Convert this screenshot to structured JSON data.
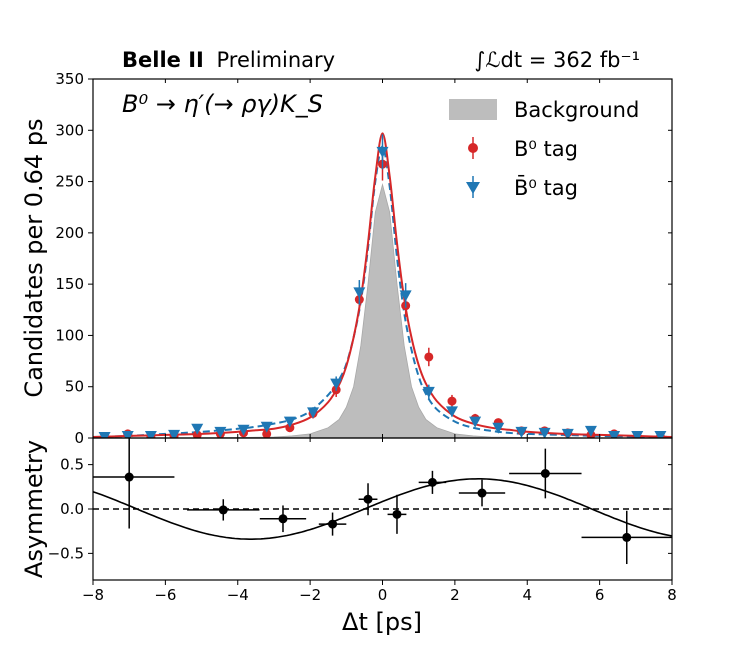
{
  "header": {
    "experiment_bold": "Belle II",
    "experiment_rest": "Preliminary",
    "luminosity": "∫ℒdt = 362 fb⁻¹"
  },
  "chart_data": [
    {
      "type": "scatter",
      "panel": "top",
      "process_label": "B⁰ → η′(→ ργ)K_S",
      "xlabel": "",
      "ylabel": "Candidates per 0.64 ps",
      "xlim": [
        -8,
        8
      ],
      "ylim": [
        0,
        350
      ],
      "xticks": [
        -8,
        -6,
        -4,
        -2,
        0,
        2,
        4,
        6,
        8
      ],
      "yticks": [
        0,
        50,
        100,
        150,
        200,
        250,
        300,
        350
      ],
      "legend": {
        "placement": "top-right",
        "entries": [
          {
            "key": "background",
            "label": "Background"
          },
          {
            "key": "b0",
            "label": "B⁰ tag"
          },
          {
            "key": "b0bar",
            "label": "B̄⁰ tag"
          }
        ]
      },
      "colors": {
        "b0": "#d62728",
        "b0bar": "#1f77b4",
        "background": "#bdbdbd"
      },
      "series": [
        {
          "key": "b0",
          "marker": "circle",
          "points": [
            {
              "x": -7.68,
              "y": 1,
              "err": 1
            },
            {
              "x": -7.04,
              "y": 4,
              "err": 2
            },
            {
              "x": -6.4,
              "y": 1,
              "err": 1
            },
            {
              "x": -5.76,
              "y": 2,
              "err": 1.5
            },
            {
              "x": -5.12,
              "y": 3,
              "err": 2
            },
            {
              "x": -4.48,
              "y": 4,
              "err": 2
            },
            {
              "x": -3.84,
              "y": 5,
              "err": 2.5
            },
            {
              "x": -3.2,
              "y": 4,
              "err": 2.5
            },
            {
              "x": -2.56,
              "y": 10,
              "err": 3.5
            },
            {
              "x": -1.92,
              "y": 24,
              "err": 5
            },
            {
              "x": -1.28,
              "y": 47,
              "err": 7
            },
            {
              "x": -0.64,
              "y": 135,
              "err": 11
            },
            {
              "x": 0.0,
              "y": 267,
              "err": 16
            },
            {
              "x": 0.64,
              "y": 129,
              "err": 11
            },
            {
              "x": 1.28,
              "y": 79,
              "err": 9
            },
            {
              "x": 1.92,
              "y": 36,
              "err": 6
            },
            {
              "x": 2.56,
              "y": 19,
              "err": 4.5
            },
            {
              "x": 3.2,
              "y": 15,
              "err": 4
            },
            {
              "x": 3.84,
              "y": 7,
              "err": 2.5
            },
            {
              "x": 4.48,
              "y": 7,
              "err": 2.5
            },
            {
              "x": 5.12,
              "y": 5,
              "err": 2
            },
            {
              "x": 5.76,
              "y": 3,
              "err": 2
            },
            {
              "x": 6.4,
              "y": 4,
              "err": 2
            },
            {
              "x": 7.04,
              "y": 1,
              "err": 1
            },
            {
              "x": 7.68,
              "y": 1,
              "err": 1
            }
          ]
        },
        {
          "key": "b0bar",
          "marker": "triangle-down",
          "points": [
            {
              "x": -7.68,
              "y": 1,
              "err": 1
            },
            {
              "x": -7.04,
              "y": 2,
              "err": 1.5
            },
            {
              "x": -6.4,
              "y": 2,
              "err": 1.5
            },
            {
              "x": -5.76,
              "y": 3,
              "err": 2
            },
            {
              "x": -5.12,
              "y": 9,
              "err": 3
            },
            {
              "x": -4.48,
              "y": 6,
              "err": 2.5
            },
            {
              "x": -3.84,
              "y": 8,
              "err": 3
            },
            {
              "x": -3.2,
              "y": 11,
              "err": 3.5
            },
            {
              "x": -2.56,
              "y": 16,
              "err": 4
            },
            {
              "x": -1.92,
              "y": 25,
              "err": 5
            },
            {
              "x": -1.28,
              "y": 53,
              "err": 7
            },
            {
              "x": -0.64,
              "y": 142,
              "err": 12
            },
            {
              "x": 0.0,
              "y": 279,
              "err": 17
            },
            {
              "x": 0.64,
              "y": 139,
              "err": 12
            },
            {
              "x": 1.28,
              "y": 45,
              "err": 7
            },
            {
              "x": 1.92,
              "y": 26,
              "err": 5
            },
            {
              "x": 2.56,
              "y": 16,
              "err": 4
            },
            {
              "x": 3.2,
              "y": 10,
              "err": 3
            },
            {
              "x": 3.84,
              "y": 6,
              "err": 2.5
            },
            {
              "x": 4.48,
              "y": 5,
              "err": 2
            },
            {
              "x": 5.12,
              "y": 4,
              "err": 2
            },
            {
              "x": 5.76,
              "y": 7,
              "err": 2.5
            },
            {
              "x": 6.4,
              "y": 2,
              "err": 1.5
            },
            {
              "x": 7.04,
              "y": 2,
              "err": 1.5
            },
            {
              "x": 7.68,
              "y": 2,
              "err": 1.5
            }
          ]
        }
      ],
      "curves": [
        {
          "key": "b0_fit",
          "style": "solid",
          "x": [
            -8,
            -7,
            -6,
            -5,
            -4,
            -3.5,
            -3,
            -2.5,
            -2,
            -1.5,
            -1.2,
            -1,
            -0.8,
            -0.6,
            -0.4,
            -0.2,
            0,
            0.2,
            0.4,
            0.6,
            0.8,
            1,
            1.2,
            1.5,
            2,
            2.5,
            3,
            3.5,
            4,
            5,
            6,
            7,
            8
          ],
          "y": [
            1,
            2,
            3,
            4,
            6,
            7.5,
            9,
            13,
            20,
            35,
            52,
            70,
            98,
            136,
            190,
            255,
            297,
            255,
            190,
            136,
            98,
            71,
            53,
            36,
            21,
            14,
            10,
            8,
            6,
            4,
            3,
            2,
            1
          ]
        },
        {
          "key": "b0bar_fit",
          "style": "dashed",
          "x": [
            -8,
            -7,
            -6,
            -5,
            -4,
            -3.5,
            -3,
            -2.5,
            -2,
            -1.5,
            -1.2,
            -1,
            -0.8,
            -0.6,
            -0.4,
            -0.2,
            0,
            0.2,
            0.4,
            0.6,
            0.8,
            1,
            1.2,
            1.5,
            2,
            2.5,
            3,
            3.5,
            4,
            5,
            6,
            7,
            8
          ],
          "y": [
            1,
            2,
            4,
            6,
            9,
            11,
            14,
            18,
            26,
            42,
            57,
            72,
            98,
            133,
            185,
            250,
            284,
            245,
            176,
            122,
            86,
            60,
            43,
            28,
            16,
            10,
            7,
            5,
            4,
            3,
            2,
            1.5,
            1
          ]
        },
        {
          "key": "background",
          "style": "filled",
          "x": [
            -8,
            -6,
            -4,
            -3,
            -2.5,
            -2,
            -1.5,
            -1.2,
            -1,
            -0.8,
            -0.6,
            -0.4,
            -0.2,
            0,
            0.2,
            0.4,
            0.6,
            0.8,
            1,
            1.2,
            1.5,
            2,
            2.5,
            3,
            4,
            6,
            8
          ],
          "y": [
            0,
            0,
            0.5,
            1,
            2,
            4,
            10,
            18,
            30,
            50,
            90,
            150,
            220,
            247,
            220,
            150,
            90,
            50,
            30,
            18,
            10,
            4,
            2,
            1,
            0.5,
            0,
            0
          ]
        }
      ]
    },
    {
      "type": "scatter",
      "panel": "bottom",
      "xlabel": "Δt [ps]",
      "ylabel": "Asymmetry",
      "xlim": [
        -8,
        8
      ],
      "ylim": [
        -0.8,
        0.8
      ],
      "xticks": [
        -8,
        -6,
        -4,
        -2,
        0,
        2,
        4,
        6,
        8
      ],
      "yticks": [
        -0.5,
        0.0,
        0.5
      ],
      "xtick_labels": [
        "−8",
        "−6",
        "−4",
        "−2",
        "0",
        "2",
        "4",
        "6",
        "8"
      ],
      "ytick_labels": [
        "−0.5",
        "0.0",
        "0.5"
      ],
      "points": [
        {
          "x": -7.0,
          "y": 0.36,
          "xerr": 1.25,
          "yerr": 0.58
        },
        {
          "x": -4.4,
          "y": -0.01,
          "xerr": 1.0,
          "yerr": 0.12
        },
        {
          "x": -2.75,
          "y": -0.11,
          "xerr": 0.64,
          "yerr": 0.15
        },
        {
          "x": -1.38,
          "y": -0.17,
          "xerr": 0.38,
          "yerr": 0.13
        },
        {
          "x": -0.4,
          "y": 0.11,
          "xerr": 0.26,
          "yerr": 0.18
        },
        {
          "x": 0.4,
          "y": -0.06,
          "xerr": 0.26,
          "yerr": 0.22
        },
        {
          "x": 1.38,
          "y": 0.3,
          "xerr": 0.38,
          "yerr": 0.13
        },
        {
          "x": 2.75,
          "y": 0.18,
          "xerr": 0.64,
          "yerr": 0.15
        },
        {
          "x": 4.5,
          "y": 0.4,
          "xerr": 1.0,
          "yerr": 0.28
        },
        {
          "x": 6.75,
          "y": -0.32,
          "xerr": 1.25,
          "yerr": 0.3
        }
      ],
      "fit": {
        "amplitude": 0.34,
        "omega": 0.5,
        "phase_x": -0.5
      },
      "reference_line": {
        "y": 0.0,
        "style": "dashed"
      }
    }
  ]
}
